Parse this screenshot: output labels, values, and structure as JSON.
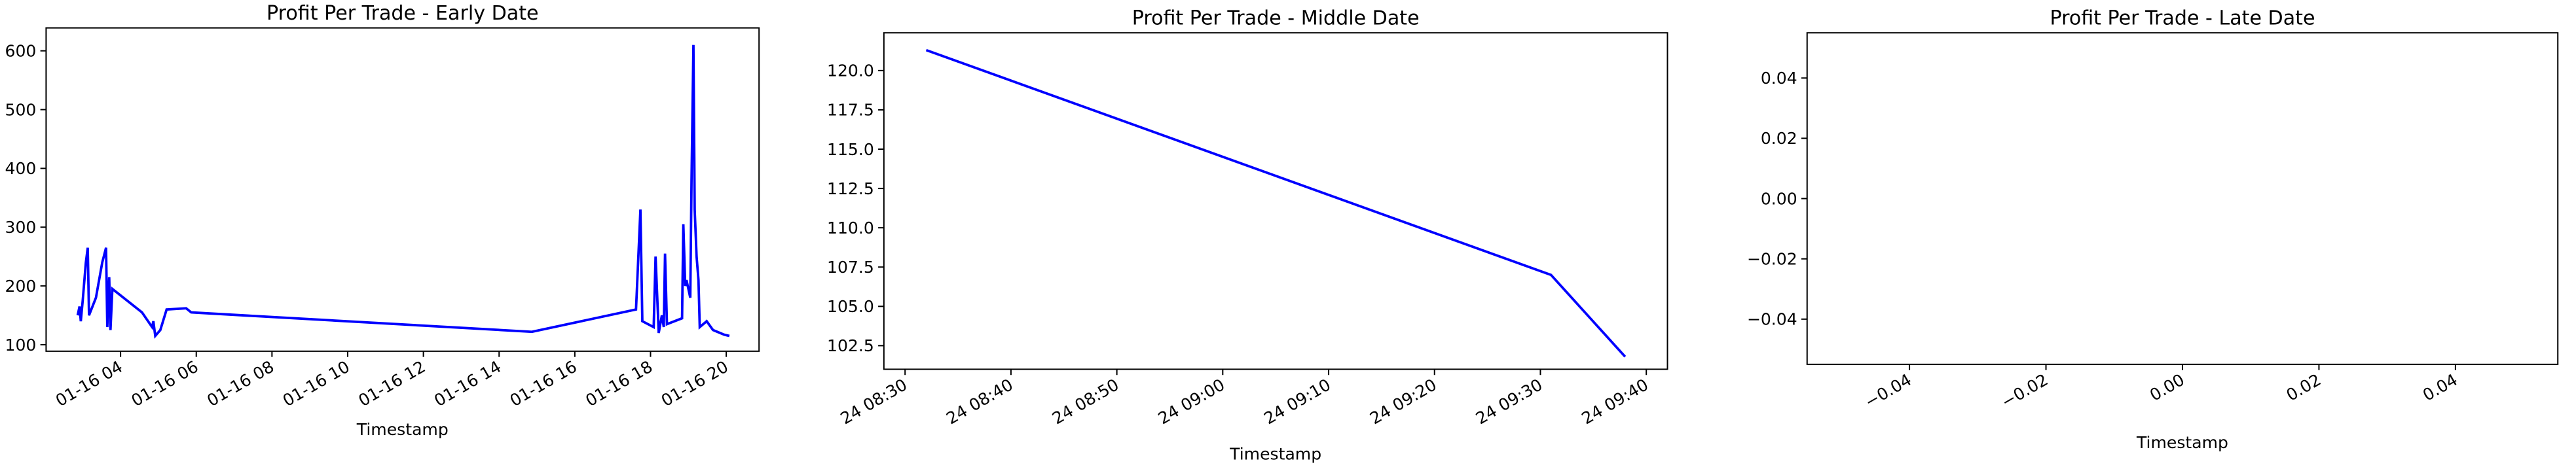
{
  "chart_data": [
    {
      "type": "line",
      "title": "Profit Per Trade - Early Date",
      "xlabel": "Timestamp",
      "x": [
        "01-16 02:52",
        "01-16 02:55",
        "01-16 02:57",
        "01-16 03:00",
        "01-16 03:05",
        "01-16 03:08",
        "01-16 03:10",
        "01-16 03:21",
        "01-16 03:31",
        "01-16 03:37",
        "01-16 03:39",
        "01-16 03:42",
        "01-16 03:44",
        "01-16 03:47",
        "01-16 04:34",
        "01-16 04:50",
        "01-16 04:52",
        "01-16 04:55",
        "01-16 05:03",
        "01-16 05:13",
        "01-16 05:44",
        "01-16 05:52",
        "01-16 14:52",
        "01-16 17:37",
        "01-16 17:44",
        "01-16 17:47",
        "01-16 18:05",
        "01-16 18:08",
        "01-16 18:13",
        "01-16 18:18",
        "01-16 18:21",
        "01-16 18:23",
        "01-16 18:26",
        "01-16 18:50",
        "01-16 18:52",
        "01-16 18:55",
        "01-16 18:57",
        "01-16 19:03",
        "01-16 19:05",
        "01-16 19:08",
        "01-16 19:10",
        "01-16 19:13",
        "01-16 19:16",
        "01-16 19:18",
        "01-16 19:29",
        "01-16 19:39",
        "01-16 19:57",
        "01-16 20:05"
      ],
      "series": [
        {
          "color": "#0000ff",
          "values": [
            150,
            165,
            140,
            175,
            240,
            265,
            150,
            180,
            240,
            265,
            130,
            215,
            125,
            195,
            155,
            130,
            140,
            115,
            125,
            160,
            162,
            155,
            122,
            160,
            330,
            140,
            130,
            250,
            120,
            150,
            130,
            255,
            135,
            145,
            305,
            200,
            210,
            180,
            380,
            610,
            330,
            250,
            210,
            130,
            140,
            125,
            117,
            115
          ]
        }
      ],
      "xlim": [
        "01-16 02:02",
        "01-16 20:52"
      ],
      "ylim": [
        89,
        639
      ],
      "xticks": [
        "01-16 04",
        "01-16 06",
        "01-16 08",
        "01-16 10",
        "01-16 12",
        "01-16 14",
        "01-16 16",
        "01-16 18",
        "01-16 20"
      ],
      "yticks": [
        100,
        200,
        300,
        400,
        500,
        600
      ]
    },
    {
      "type": "line",
      "title": "Profit Per Trade - Middle Date",
      "xlabel": "Timestamp",
      "x": [
        "24 08:32",
        "24 09:31",
        "24 09:38"
      ],
      "series": [
        {
          "color": "#0000ff",
          "values": [
            121.3,
            107.0,
            101.8
          ]
        }
      ],
      "xlim": [
        "24 08:28",
        "24 09:42"
      ],
      "ylim": [
        101.0,
        122.4
      ],
      "xticks": [
        "24 08:30",
        "24 08:40",
        "24 08:50",
        "24 09:00",
        "24 09:10",
        "24 09:20",
        "24 09:30",
        "24 09:40"
      ],
      "yticks": [
        {
          "value": 102.5,
          "label": "102.5"
        },
        {
          "value": 105,
          "label": "105.0"
        },
        {
          "value": 107.5,
          "label": "107.5"
        },
        {
          "value": 110,
          "label": "110.0"
        },
        {
          "value": 112.5,
          "label": "112.5"
        },
        {
          "value": 115,
          "label": "115.0"
        },
        {
          "value": 117.5,
          "label": "117.5"
        },
        {
          "value": 120,
          "label": "120.0"
        }
      ]
    },
    {
      "type": "line",
      "title": "Profit Per Trade - Late Date",
      "xlabel": "Timestamp",
      "x": [],
      "series": [
        {
          "color": "#0000ff",
          "values": []
        }
      ],
      "xlim": [
        -0.055,
        0.055
      ],
      "ylim": [
        -0.055,
        0.055
      ],
      "xticks": [
        {
          "value": -0.04,
          "label": "−0.04"
        },
        {
          "value": -0.02,
          "label": "−0.02"
        },
        {
          "value": 0,
          "label": "0.00"
        },
        0.02,
        0.04
      ],
      "yticks": [
        {
          "value": -0.04,
          "label": "−0.04"
        },
        {
          "value": -0.02,
          "label": "−0.02"
        },
        {
          "value": 0,
          "label": "0.00"
        },
        0.02,
        0.04
      ]
    }
  ]
}
